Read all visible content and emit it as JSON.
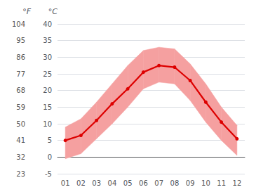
{
  "chart_data": {
    "type": "line",
    "categories": [
      "01",
      "02",
      "03",
      "04",
      "05",
      "06",
      "07",
      "08",
      "09",
      "10",
      "11",
      "12"
    ],
    "series": [
      {
        "type": "band",
        "color": "#f5a0a0",
        "low": [
          -0.5,
          1.0,
          5.5,
          10.0,
          15.0,
          20.5,
          22.5,
          22.0,
          17.0,
          10.5,
          5.0,
          0.5
        ],
        "high": [
          9.0,
          11.5,
          16.5,
          22.0,
          27.5,
          32.0,
          33.0,
          32.5,
          28.0,
          22.0,
          15.0,
          9.5
        ]
      },
      {
        "type": "line",
        "color": "#dd0000",
        "marker": "circle",
        "line_style": "solid",
        "values": [
          5.0,
          6.5,
          11.0,
          16.0,
          20.5,
          25.5,
          27.5,
          27.0,
          23.0,
          16.5,
          10.5,
          5.5
        ]
      }
    ],
    "ylabel": "°C",
    "ylim": [
      -5,
      40
    ],
    "yticks": [
      -5,
      0,
      5,
      10,
      15,
      20,
      25,
      30,
      35,
      40
    ],
    "y2label": "°F",
    "y2lim": [
      23,
      104
    ],
    "y2ticks": [
      23,
      32,
      41,
      50,
      59,
      68,
      77,
      86,
      95,
      104
    ],
    "grid": true
  }
}
